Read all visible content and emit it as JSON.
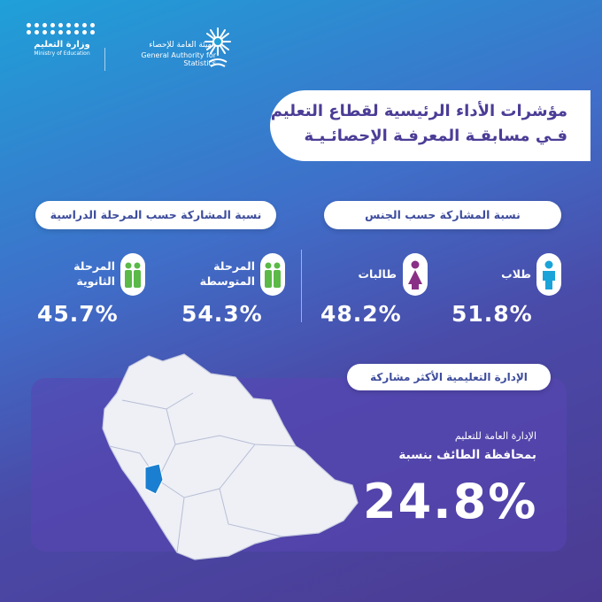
{
  "header": {
    "moe_name_ar": "وزارة التعليم",
    "moe_name_en": "Ministry of Education",
    "gas_name_ar": "الهيئة العامة للإحصاء",
    "gas_name_en": "General Authority for Statistics"
  },
  "title": {
    "line1": "مؤشرات الأداء الرئيسية لقطاع التعليم",
    "line2": "فـي مسابقـة المعرفـة الإحصائـيـة"
  },
  "gender": {
    "header": "نسبة المشاركة حسب الجنس",
    "items": [
      {
        "label": "طلاب",
        "value": "51.8%",
        "icon": "male-icon",
        "color": "#1aa3d9"
      },
      {
        "label": "طالبات",
        "value": "48.2%",
        "icon": "female-icon",
        "color": "#8a2f86"
      }
    ]
  },
  "stage": {
    "header": "نسبة المشاركة حسب المرحلة الدراسية",
    "items": [
      {
        "label_line1": "المرحلة",
        "label_line2": "المتوسطة",
        "value": "54.3%",
        "icon": "students-icon",
        "color": "#5ab947"
      },
      {
        "label_line1": "المرحلة",
        "label_line2": "الثانوية",
        "value": "45.7%",
        "icon": "students-icon",
        "color": "#5ab947"
      }
    ]
  },
  "admin": {
    "header": "الإدارة التعليمية الأكثر مشاركة",
    "subtitle": "الإدارة العامة للتعليم",
    "main": "بمحافظة الطائف بنسبة",
    "value": "24.8%",
    "highlight_color": "#1a7fd0"
  }
}
